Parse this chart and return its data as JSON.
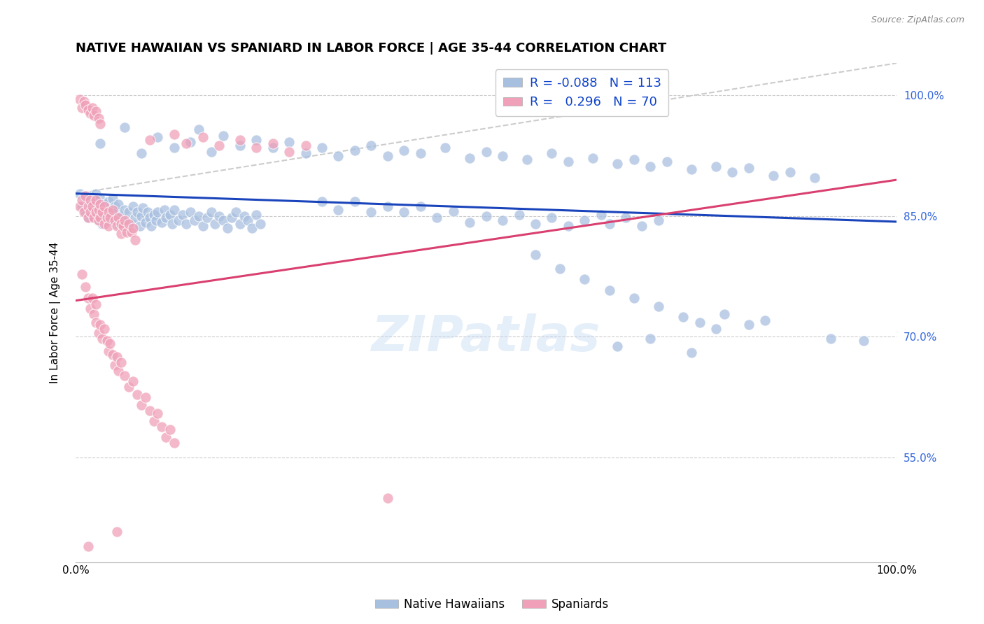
{
  "title": "NATIVE HAWAIIAN VS SPANIARD IN LABOR FORCE | AGE 35-44 CORRELATION CHART",
  "source": "Source: ZipAtlas.com",
  "ylabel": "In Labor Force | Age 35-44",
  "xlim": [
    0.0,
    1.0
  ],
  "ylim": [
    0.42,
    1.04
  ],
  "yticks": [
    0.55,
    0.7,
    0.85,
    1.0
  ],
  "ytick_labels": [
    "55.0%",
    "70.0%",
    "85.0%",
    "100.0%"
  ],
  "xtick_labels": [
    "0.0%",
    "100.0%"
  ],
  "xticks": [
    0.0,
    1.0
  ],
  "legend_r_blue": "-0.088",
  "legend_n_blue": "113",
  "legend_r_pink": "0.296",
  "legend_n_pink": "70",
  "watermark": "ZIPatlas",
  "blue_color": "#a8c0e0",
  "pink_color": "#f0a0b8",
  "blue_line_color": "#1a44bb",
  "pink_line_color": "#d94070",
  "dashed_line_color": "#cccccc",
  "blue_scatter": [
    [
      0.005,
      0.878
    ],
    [
      0.008,
      0.862
    ],
    [
      0.01,
      0.875
    ],
    [
      0.012,
      0.855
    ],
    [
      0.015,
      0.87
    ],
    [
      0.015,
      0.848
    ],
    [
      0.018,
      0.862
    ],
    [
      0.018,
      0.875
    ],
    [
      0.02,
      0.855
    ],
    [
      0.022,
      0.868
    ],
    [
      0.022,
      0.848
    ],
    [
      0.025,
      0.878
    ],
    [
      0.025,
      0.858
    ],
    [
      0.028,
      0.862
    ],
    [
      0.028,
      0.845
    ],
    [
      0.03,
      0.872
    ],
    [
      0.032,
      0.855
    ],
    [
      0.032,
      0.84
    ],
    [
      0.035,
      0.865
    ],
    [
      0.035,
      0.85
    ],
    [
      0.038,
      0.858
    ],
    [
      0.04,
      0.845
    ],
    [
      0.04,
      0.868
    ],
    [
      0.042,
      0.855
    ],
    [
      0.045,
      0.872
    ],
    [
      0.045,
      0.848
    ],
    [
      0.048,
      0.862
    ],
    [
      0.05,
      0.84
    ],
    [
      0.05,
      0.855
    ],
    [
      0.052,
      0.865
    ],
    [
      0.055,
      0.85
    ],
    [
      0.058,
      0.842
    ],
    [
      0.06,
      0.858
    ],
    [
      0.062,
      0.845
    ],
    [
      0.065,
      0.855
    ],
    [
      0.068,
      0.84
    ],
    [
      0.07,
      0.862
    ],
    [
      0.072,
      0.848
    ],
    [
      0.075,
      0.855
    ],
    [
      0.078,
      0.838
    ],
    [
      0.08,
      0.85
    ],
    [
      0.082,
      0.86
    ],
    [
      0.085,
      0.842
    ],
    [
      0.088,
      0.855
    ],
    [
      0.09,
      0.848
    ],
    [
      0.092,
      0.838
    ],
    [
      0.095,
      0.852
    ],
    [
      0.098,
      0.845
    ],
    [
      0.1,
      0.855
    ],
    [
      0.105,
      0.842
    ],
    [
      0.108,
      0.858
    ],
    [
      0.11,
      0.848
    ],
    [
      0.115,
      0.852
    ],
    [
      0.118,
      0.84
    ],
    [
      0.12,
      0.858
    ],
    [
      0.125,
      0.845
    ],
    [
      0.13,
      0.852
    ],
    [
      0.135,
      0.84
    ],
    [
      0.14,
      0.855
    ],
    [
      0.145,
      0.845
    ],
    [
      0.15,
      0.85
    ],
    [
      0.155,
      0.838
    ],
    [
      0.16,
      0.848
    ],
    [
      0.165,
      0.855
    ],
    [
      0.17,
      0.84
    ],
    [
      0.175,
      0.85
    ],
    [
      0.18,
      0.845
    ],
    [
      0.185,
      0.835
    ],
    [
      0.19,
      0.848
    ],
    [
      0.195,
      0.855
    ],
    [
      0.2,
      0.84
    ],
    [
      0.205,
      0.85
    ],
    [
      0.21,
      0.845
    ],
    [
      0.215,
      0.835
    ],
    [
      0.22,
      0.852
    ],
    [
      0.225,
      0.84
    ],
    [
      0.03,
      0.94
    ],
    [
      0.06,
      0.96
    ],
    [
      0.08,
      0.928
    ],
    [
      0.1,
      0.948
    ],
    [
      0.12,
      0.935
    ],
    [
      0.14,
      0.942
    ],
    [
      0.15,
      0.958
    ],
    [
      0.165,
      0.93
    ],
    [
      0.18,
      0.95
    ],
    [
      0.2,
      0.938
    ],
    [
      0.22,
      0.945
    ],
    [
      0.24,
      0.935
    ],
    [
      0.26,
      0.942
    ],
    [
      0.28,
      0.928
    ],
    [
      0.3,
      0.935
    ],
    [
      0.32,
      0.925
    ],
    [
      0.34,
      0.932
    ],
    [
      0.36,
      0.938
    ],
    [
      0.38,
      0.925
    ],
    [
      0.4,
      0.932
    ],
    [
      0.42,
      0.928
    ],
    [
      0.45,
      0.935
    ],
    [
      0.48,
      0.922
    ],
    [
      0.5,
      0.93
    ],
    [
      0.52,
      0.925
    ],
    [
      0.55,
      0.92
    ],
    [
      0.58,
      0.928
    ],
    [
      0.6,
      0.918
    ],
    [
      0.63,
      0.922
    ],
    [
      0.66,
      0.915
    ],
    [
      0.68,
      0.92
    ],
    [
      0.7,
      0.912
    ],
    [
      0.72,
      0.918
    ],
    [
      0.75,
      0.908
    ],
    [
      0.78,
      0.912
    ],
    [
      0.8,
      0.905
    ],
    [
      0.82,
      0.91
    ],
    [
      0.85,
      0.9
    ],
    [
      0.87,
      0.905
    ],
    [
      0.9,
      0.898
    ],
    [
      0.3,
      0.868
    ],
    [
      0.32,
      0.858
    ],
    [
      0.34,
      0.868
    ],
    [
      0.36,
      0.855
    ],
    [
      0.38,
      0.862
    ],
    [
      0.4,
      0.855
    ],
    [
      0.42,
      0.862
    ],
    [
      0.44,
      0.848
    ],
    [
      0.46,
      0.856
    ],
    [
      0.48,
      0.842
    ],
    [
      0.5,
      0.85
    ],
    [
      0.52,
      0.845
    ],
    [
      0.54,
      0.852
    ],
    [
      0.56,
      0.84
    ],
    [
      0.58,
      0.848
    ],
    [
      0.6,
      0.838
    ],
    [
      0.62,
      0.845
    ],
    [
      0.64,
      0.852
    ],
    [
      0.65,
      0.84
    ],
    [
      0.67,
      0.848
    ],
    [
      0.69,
      0.838
    ],
    [
      0.71,
      0.845
    ],
    [
      0.56,
      0.802
    ],
    [
      0.59,
      0.785
    ],
    [
      0.62,
      0.772
    ],
    [
      0.65,
      0.758
    ],
    [
      0.68,
      0.748
    ],
    [
      0.71,
      0.738
    ],
    [
      0.74,
      0.725
    ],
    [
      0.76,
      0.718
    ],
    [
      0.79,
      0.728
    ],
    [
      0.82,
      0.715
    ],
    [
      0.66,
      0.688
    ],
    [
      0.7,
      0.698
    ],
    [
      0.75,
      0.68
    ],
    [
      0.78,
      0.71
    ],
    [
      0.84,
      0.72
    ],
    [
      0.92,
      0.698
    ],
    [
      0.96,
      0.695
    ]
  ],
  "pink_scatter": [
    [
      0.005,
      0.862
    ],
    [
      0.008,
      0.87
    ],
    [
      0.01,
      0.855
    ],
    [
      0.012,
      0.875
    ],
    [
      0.015,
      0.848
    ],
    [
      0.015,
      0.862
    ],
    [
      0.018,
      0.855
    ],
    [
      0.018,
      0.87
    ],
    [
      0.02,
      0.862
    ],
    [
      0.022,
      0.848
    ],
    [
      0.025,
      0.855
    ],
    [
      0.025,
      0.87
    ],
    [
      0.028,
      0.845
    ],
    [
      0.028,
      0.858
    ],
    [
      0.03,
      0.865
    ],
    [
      0.03,
      0.848
    ],
    [
      0.032,
      0.855
    ],
    [
      0.035,
      0.84
    ],
    [
      0.035,
      0.862
    ],
    [
      0.038,
      0.848
    ],
    [
      0.04,
      0.855
    ],
    [
      0.04,
      0.838
    ],
    [
      0.042,
      0.848
    ],
    [
      0.045,
      0.858
    ],
    [
      0.048,
      0.845
    ],
    [
      0.05,
      0.838
    ],
    [
      0.052,
      0.848
    ],
    [
      0.055,
      0.84
    ],
    [
      0.055,
      0.828
    ],
    [
      0.058,
      0.838
    ],
    [
      0.06,
      0.845
    ],
    [
      0.062,
      0.83
    ],
    [
      0.065,
      0.84
    ],
    [
      0.068,
      0.83
    ],
    [
      0.07,
      0.835
    ],
    [
      0.072,
      0.82
    ],
    [
      0.008,
      0.778
    ],
    [
      0.012,
      0.762
    ],
    [
      0.015,
      0.748
    ],
    [
      0.018,
      0.735
    ],
    [
      0.02,
      0.748
    ],
    [
      0.022,
      0.728
    ],
    [
      0.025,
      0.74
    ],
    [
      0.025,
      0.718
    ],
    [
      0.028,
      0.705
    ],
    [
      0.03,
      0.715
    ],
    [
      0.032,
      0.698
    ],
    [
      0.035,
      0.71
    ],
    [
      0.038,
      0.695
    ],
    [
      0.04,
      0.682
    ],
    [
      0.042,
      0.692
    ],
    [
      0.045,
      0.678
    ],
    [
      0.048,
      0.665
    ],
    [
      0.05,
      0.675
    ],
    [
      0.052,
      0.658
    ],
    [
      0.055,
      0.668
    ],
    [
      0.06,
      0.652
    ],
    [
      0.065,
      0.638
    ],
    [
      0.07,
      0.645
    ],
    [
      0.075,
      0.628
    ],
    [
      0.08,
      0.615
    ],
    [
      0.085,
      0.625
    ],
    [
      0.09,
      0.608
    ],
    [
      0.095,
      0.595
    ],
    [
      0.1,
      0.605
    ],
    [
      0.105,
      0.588
    ],
    [
      0.11,
      0.575
    ],
    [
      0.115,
      0.585
    ],
    [
      0.12,
      0.568
    ],
    [
      0.005,
      0.995
    ],
    [
      0.008,
      0.985
    ],
    [
      0.01,
      0.992
    ],
    [
      0.012,
      0.988
    ],
    [
      0.015,
      0.982
    ],
    [
      0.018,
      0.978
    ],
    [
      0.02,
      0.985
    ],
    [
      0.022,
      0.975
    ],
    [
      0.025,
      0.98
    ],
    [
      0.028,
      0.972
    ],
    [
      0.03,
      0.965
    ],
    [
      0.09,
      0.945
    ],
    [
      0.12,
      0.952
    ],
    [
      0.135,
      0.94
    ],
    [
      0.155,
      0.948
    ],
    [
      0.175,
      0.938
    ],
    [
      0.2,
      0.945
    ],
    [
      0.22,
      0.935
    ],
    [
      0.24,
      0.94
    ],
    [
      0.26,
      0.93
    ],
    [
      0.28,
      0.938
    ],
    [
      0.38,
      0.5
    ],
    [
      0.05,
      0.458
    ],
    [
      0.015,
      0.44
    ]
  ],
  "blue_line": {
    "x0": 0.0,
    "x1": 1.0,
    "y0": 0.878,
    "y1": 0.843
  },
  "pink_line": {
    "x0": 0.0,
    "x1": 1.0,
    "y0": 0.745,
    "y1": 0.895
  },
  "dashed_line": {
    "x0": 0.0,
    "x1": 1.0,
    "y0": 0.878,
    "y1": 1.04
  }
}
